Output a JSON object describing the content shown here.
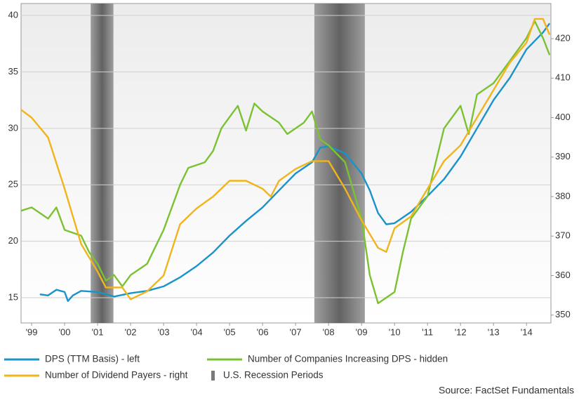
{
  "chart_data": {
    "type": "line",
    "source": "Source: FactSet Fundamentals",
    "xlim": [
      1999.18,
      2015.24
    ],
    "xticks": [
      {
        "value": 1999.5,
        "label": "'99"
      },
      {
        "value": 2000.5,
        "label": "'00"
      },
      {
        "value": 2001.5,
        "label": "'01"
      },
      {
        "value": 2002.5,
        "label": "'02"
      },
      {
        "value": 2003.5,
        "label": "'03"
      },
      {
        "value": 2004.5,
        "label": "'04"
      },
      {
        "value": 2005.5,
        "label": "'05"
      },
      {
        "value": 2006.5,
        "label": "'06"
      },
      {
        "value": 2007.5,
        "label": "'07"
      },
      {
        "value": 2008.5,
        "label": "'08"
      },
      {
        "value": 2009.5,
        "label": "'09"
      },
      {
        "value": 2010.5,
        "label": "'10"
      },
      {
        "value": 2011.5,
        "label": "'11"
      },
      {
        "value": 2012.5,
        "label": "'12"
      },
      {
        "value": 2013.5,
        "label": "'13"
      },
      {
        "value": 2014.5,
        "label": "'14"
      }
    ],
    "ylim": [
      12.76,
      41.06
    ],
    "yticks": [
      15,
      20,
      25,
      30,
      35,
      40
    ],
    "y2lim": [
      348.0,
      428.9
    ],
    "y2ticks": [
      350,
      360,
      370,
      380,
      390,
      400,
      410,
      420
    ],
    "grid": true,
    "recessions": {
      "name": "U.S. Recession Periods",
      "color": "#7a7a7a",
      "spans": [
        [
          2001.29,
          2001.98
        ],
        [
          2008.07,
          2009.6
        ]
      ]
    },
    "series": [
      {
        "name": "DPS (TTM Basis) - left",
        "color": "#1a93c9",
        "axis": "y",
        "x": [
          1999.75,
          2000.0,
          2000.25,
          2000.5,
          2000.6,
          2000.75,
          2001.0,
          2001.5,
          2002.0,
          2002.5,
          2003.0,
          2003.5,
          2004.0,
          2004.5,
          2005.0,
          2005.5,
          2006.0,
          2006.5,
          2007.0,
          2007.5,
          2008.0,
          2008.25,
          2008.5,
          2009.0,
          2009.5,
          2009.75,
          2010.0,
          2010.25,
          2010.5,
          2011.0,
          2011.5,
          2012.0,
          2012.5,
          2013.0,
          2013.5,
          2014.0,
          2014.5,
          2015.0,
          2015.2
        ],
        "values": [
          15.3,
          15.2,
          15.7,
          15.5,
          14.7,
          15.2,
          15.6,
          15.5,
          15.1,
          15.4,
          15.6,
          16.0,
          16.8,
          17.8,
          19.0,
          20.5,
          21.8,
          23.0,
          24.5,
          26.0,
          27.0,
          28.3,
          28.4,
          27.8,
          26.0,
          24.5,
          22.5,
          21.5,
          21.6,
          22.6,
          24.0,
          25.5,
          27.5,
          30.0,
          32.5,
          34.5,
          37.0,
          38.5,
          39.3
        ]
      },
      {
        "name": "Number of Companies Increasing DPS - hidden",
        "color": "#7ac231",
        "axis": "y",
        "x": [
          1999.18,
          1999.5,
          2000.0,
          2000.25,
          2000.5,
          2001.0,
          2001.25,
          2001.5,
          2001.75,
          2002.0,
          2002.25,
          2002.5,
          2003.0,
          2003.5,
          2004.0,
          2004.25,
          2004.75,
          2005.0,
          2005.25,
          2005.5,
          2005.75,
          2006.0,
          2006.25,
          2006.5,
          2007.0,
          2007.25,
          2007.75,
          2008.0,
          2008.25,
          2008.5,
          2009.0,
          2009.5,
          2009.75,
          2010.0,
          2010.25,
          2010.5,
          2010.75,
          2011.0,
          2011.5,
          2011.75,
          2012.0,
          2012.5,
          2012.75,
          2013.0,
          2013.5,
          2014.0,
          2014.5,
          2014.75,
          2015.0,
          2015.2
        ],
        "values": [
          22.7,
          23,
          22,
          23,
          21,
          20.5,
          19,
          18,
          16.5,
          17,
          16,
          17,
          18,
          21,
          25,
          26.5,
          27,
          28,
          30,
          31,
          32,
          29.8,
          32.2,
          31.5,
          30.5,
          29.5,
          30.5,
          31.5,
          29,
          28.5,
          27,
          22,
          17,
          14.5,
          15,
          15.5,
          19,
          22,
          24,
          27,
          30,
          32,
          29.5,
          33,
          34,
          36,
          38,
          39.5,
          38,
          36.5
        ]
      },
      {
        "name": "Number of Dividend Payers - right",
        "color": "#f0b41c",
        "axis": "y2",
        "x": [
          1999.18,
          1999.5,
          2000.0,
          2000.5,
          2001.0,
          2001.5,
          2001.75,
          2002.25,
          2002.5,
          2003.0,
          2003.5,
          2004.0,
          2004.5,
          2005.0,
          2005.5,
          2006.0,
          2006.5,
          2006.75,
          2007.0,
          2007.5,
          2008.0,
          2008.5,
          2009.0,
          2009.5,
          2010.0,
          2010.25,
          2010.5,
          2011.0,
          2011.5,
          2012.0,
          2012.5,
          2013.0,
          2013.5,
          2014.0,
          2014.5,
          2014.75,
          2015.0,
          2015.2
        ],
        "values": [
          402,
          400,
          395,
          382,
          368,
          361,
          357,
          357,
          354,
          356,
          360,
          373,
          377,
          380,
          384,
          384,
          382,
          380,
          384,
          387,
          389,
          389,
          382,
          374,
          367,
          366,
          372,
          375,
          382,
          389,
          393,
          400,
          407,
          414,
          419,
          425,
          425,
          421
        ]
      }
    ]
  }
}
